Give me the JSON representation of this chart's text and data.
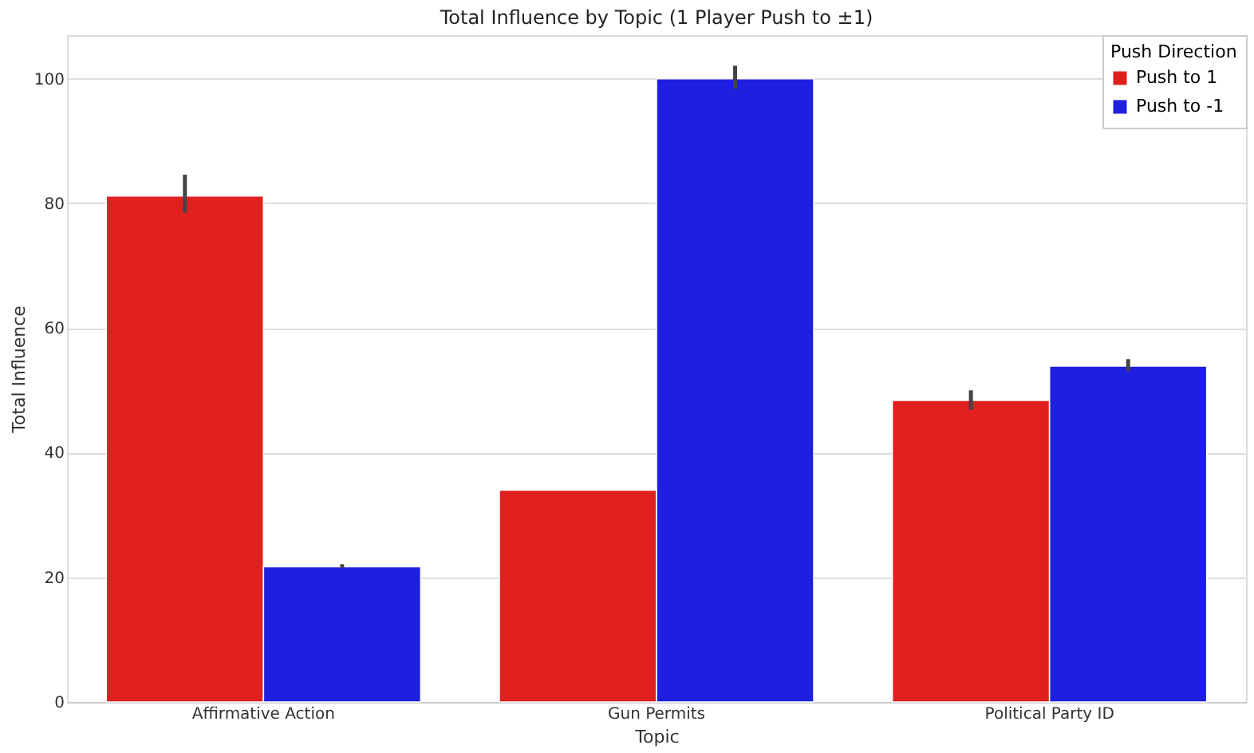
{
  "chart_data": {
    "type": "bar",
    "title": "Total Influence by Topic (1 Player Push to ±1)",
    "xlabel": "Topic",
    "ylabel": "Total Influence",
    "legend_title": "Push Direction",
    "categories": [
      "Affirmative Action",
      "Gun Permits",
      "Political Party ID"
    ],
    "series": [
      {
        "name": "Push to 1",
        "color": "#e01f1f",
        "values": [
          81.2,
          34.0,
          48.4
        ],
        "errors": [
          [
            78.5,
            84.6
          ],
          null,
          [
            46.9,
            50.0
          ]
        ]
      },
      {
        "name": "Push to -1",
        "color": "#1f1fe0",
        "values": [
          21.7,
          100.0,
          53.9
        ],
        "errors": [
          [
            21.5,
            22.1
          ],
          [
            98.4,
            102.1
          ],
          [
            53.1,
            55.0
          ]
        ]
      }
    ],
    "ylim": [
      0,
      107
    ],
    "yticks": [
      0,
      20,
      40,
      60,
      80,
      100
    ],
    "grid": "y",
    "legend": "top right"
  }
}
